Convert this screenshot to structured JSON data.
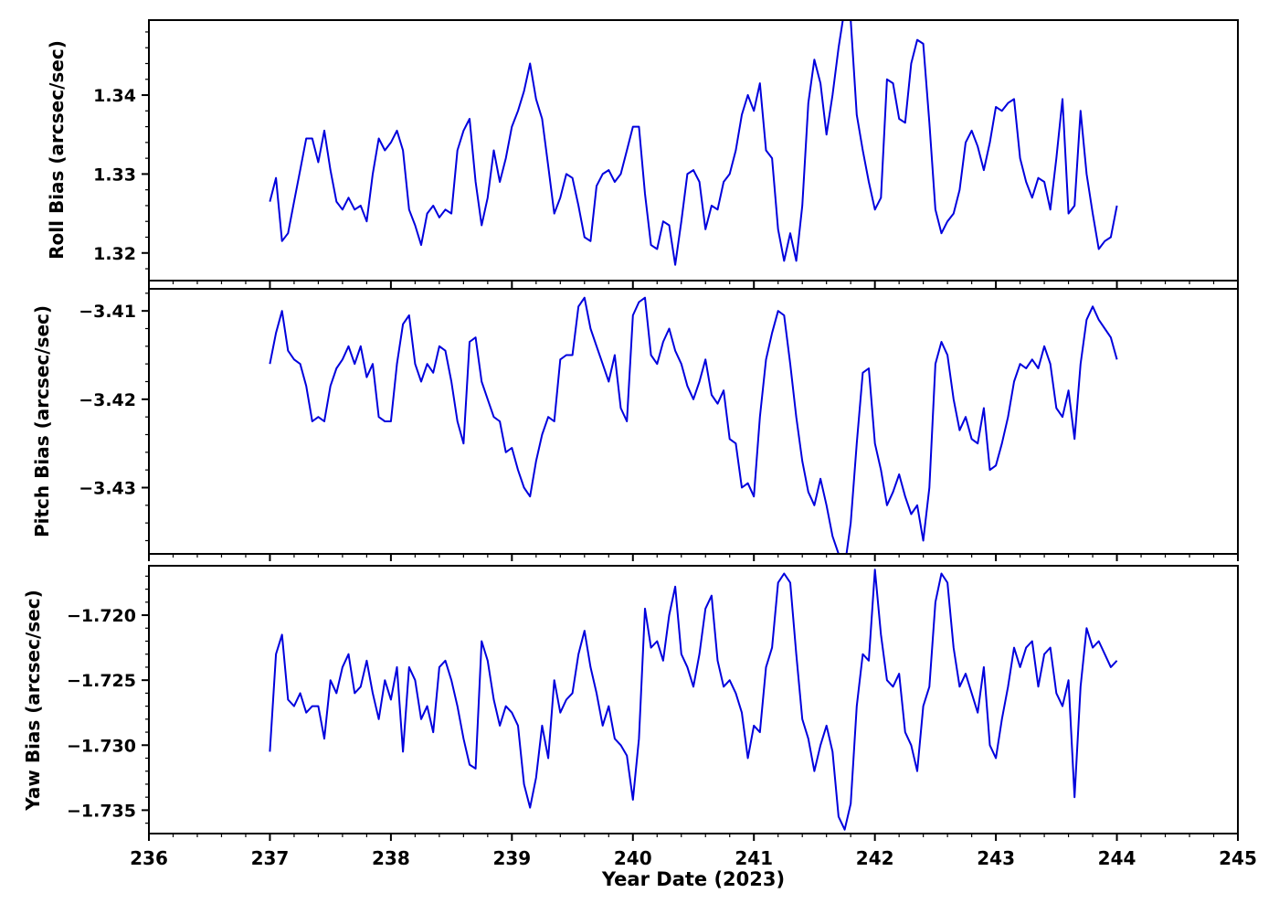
{
  "figure": {
    "background": "#ffffff",
    "line_color": "#0000dd",
    "axis_color": "#000000",
    "xlabel": "Year Date (2023)",
    "xlim": [
      236,
      245
    ],
    "x_ticks": [
      236,
      237,
      238,
      239,
      240,
      241,
      242,
      243,
      244,
      245
    ],
    "x_tick_labels": [
      "236",
      "237",
      "238",
      "239",
      "240",
      "241",
      "242",
      "243",
      "244",
      "245"
    ],
    "x_minor_step": 0.2
  },
  "chart_data": {
    "type": "line",
    "title": "",
    "xlabel": "Year Date (2023)",
    "x": [
      237,
      237.05,
      237.1,
      237.15,
      237.2,
      237.25,
      237.3,
      237.35,
      237.4,
      237.45,
      237.5,
      237.55,
      237.6,
      237.65,
      237.7,
      237.75,
      237.8,
      237.85,
      237.9,
      237.95,
      238,
      238.05,
      238.1,
      238.15,
      238.2,
      238.25,
      238.3,
      238.35,
      238.4,
      238.45,
      238.5,
      238.55,
      238.6,
      238.65,
      238.7,
      238.75,
      238.8,
      238.85,
      238.9,
      238.95,
      239,
      239.05,
      239.1,
      239.15,
      239.2,
      239.25,
      239.3,
      239.35,
      239.4,
      239.45,
      239.5,
      239.55,
      239.6,
      239.65,
      239.7,
      239.75,
      239.8,
      239.85,
      239.9,
      239.95,
      240,
      240.05,
      240.1,
      240.15,
      240.2,
      240.25,
      240.3,
      240.35,
      240.4,
      240.45,
      240.5,
      240.55,
      240.6,
      240.65,
      240.7,
      240.75,
      240.8,
      240.85,
      240.9,
      240.95,
      241,
      241.05,
      241.1,
      241.15,
      241.2,
      241.25,
      241.3,
      241.35,
      241.4,
      241.45,
      241.5,
      241.55,
      241.6,
      241.65,
      241.7,
      241.75,
      241.8,
      241.85,
      241.9,
      241.95,
      242,
      242.05,
      242.1,
      242.15,
      242.2,
      242.25,
      242.3,
      242.35,
      242.4,
      242.45,
      242.5,
      242.55,
      242.6,
      242.65,
      242.7,
      242.75,
      242.8,
      242.85,
      242.9,
      242.95,
      243,
      243.05,
      243.1,
      243.15,
      243.2,
      243.25,
      243.3,
      243.35,
      243.4,
      243.45,
      243.5,
      243.55,
      243.6,
      243.65,
      243.7,
      243.75,
      243.8,
      243.85,
      243.9,
      243.95,
      244
    ],
    "panels": [
      {
        "name": "roll-bias",
        "ylabel": "Roll Bias (arcsec/sec)",
        "ylim": [
          1.3165,
          1.3495
        ],
        "y_ticks": [
          1.32,
          1.33,
          1.34
        ],
        "y_tick_labels": [
          "1.32",
          "1.33",
          "1.34"
        ],
        "y_minor_step": 0.002,
        "y": [
          1.3265,
          1.3295,
          1.3215,
          1.3225,
          1.3265,
          1.3305,
          1.3345,
          1.3345,
          1.3315,
          1.3355,
          1.3305,
          1.3265,
          1.3255,
          1.327,
          1.3255,
          1.326,
          1.324,
          1.33,
          1.3345,
          1.333,
          1.334,
          1.3355,
          1.333,
          1.3255,
          1.3235,
          1.321,
          1.325,
          1.326,
          1.3245,
          1.3255,
          1.325,
          1.333,
          1.3355,
          1.337,
          1.329,
          1.3235,
          1.327,
          1.333,
          1.329,
          1.332,
          1.336,
          1.338,
          1.3405,
          1.344,
          1.3395,
          1.337,
          1.331,
          1.325,
          1.327,
          1.33,
          1.3295,
          1.326,
          1.322,
          1.3215,
          1.3285,
          1.33,
          1.3305,
          1.329,
          1.33,
          1.333,
          1.336,
          1.336,
          1.3275,
          1.321,
          1.3205,
          1.324,
          1.3235,
          1.3185,
          1.324,
          1.33,
          1.3305,
          1.329,
          1.323,
          1.326,
          1.3255,
          1.329,
          1.33,
          1.333,
          1.3375,
          1.34,
          1.338,
          1.3415,
          1.333,
          1.332,
          1.323,
          1.319,
          1.3225,
          1.319,
          1.326,
          1.339,
          1.3445,
          1.3415,
          1.335,
          1.34,
          1.346,
          1.351,
          1.3495,
          1.3375,
          1.333,
          1.329,
          1.3255,
          1.327,
          1.342,
          1.3415,
          1.337,
          1.3365,
          1.344,
          1.347,
          1.3465,
          1.3365,
          1.3255,
          1.3225,
          1.324,
          1.325,
          1.328,
          1.334,
          1.3355,
          1.3335,
          1.3305,
          1.334,
          1.3385,
          1.338,
          1.339,
          1.3395,
          1.332,
          1.329,
          1.327,
          1.3295,
          1.329,
          1.3255,
          1.332,
          1.3395,
          1.325,
          1.326,
          1.338,
          1.33,
          1.325,
          1.3205,
          1.3215,
          1.322,
          1.326
        ]
      },
      {
        "name": "pitch-bias",
        "ylabel": "Pitch Bias (arcsec/sec)",
        "ylim": [
          -3.4375,
          -3.4075
        ],
        "y_ticks": [
          -3.43,
          -3.42,
          -3.41
        ],
        "y_tick_labels": [
          "−3.43",
          "−3.42",
          "−3.41"
        ],
        "y_minor_step": 0.002,
        "y": [
          -3.416,
          -3.4125,
          -3.41,
          -3.4145,
          -3.4155,
          -3.416,
          -3.4185,
          -3.4225,
          -3.422,
          -3.4225,
          -3.4185,
          -3.4165,
          -3.4155,
          -3.414,
          -3.416,
          -3.414,
          -3.4175,
          -3.416,
          -3.422,
          -3.4225,
          -3.4225,
          -3.416,
          -3.4115,
          -3.4105,
          -3.416,
          -3.418,
          -3.416,
          -3.417,
          -3.414,
          -3.4145,
          -3.418,
          -3.4225,
          -3.425,
          -3.4135,
          -3.413,
          -3.418,
          -3.42,
          -3.422,
          -3.4225,
          -3.426,
          -3.4255,
          -3.428,
          -3.43,
          -3.431,
          -3.427,
          -3.424,
          -3.422,
          -3.4225,
          -3.4155,
          -3.415,
          -3.415,
          -3.4095,
          -3.4085,
          -3.412,
          -3.414,
          -3.416,
          -3.418,
          -3.415,
          -3.421,
          -3.4225,
          -3.4105,
          -3.409,
          -3.4085,
          -3.415,
          -3.416,
          -3.4135,
          -3.412,
          -3.4145,
          -3.416,
          -3.4185,
          -3.42,
          -3.418,
          -3.4155,
          -3.4195,
          -3.4205,
          -3.419,
          -3.4245,
          -3.425,
          -3.43,
          -3.4295,
          -3.431,
          -3.422,
          -3.4155,
          -3.4125,
          -3.41,
          -3.4105,
          -3.416,
          -3.422,
          -3.427,
          -3.4305,
          -3.432,
          -3.429,
          -3.432,
          -3.4355,
          -3.4375,
          -3.439,
          -3.434,
          -3.425,
          -3.417,
          -3.4165,
          -3.425,
          -3.428,
          -3.432,
          -3.4305,
          -3.4285,
          -3.431,
          -3.433,
          -3.432,
          -3.436,
          -3.43,
          -3.416,
          -3.4135,
          -3.415,
          -3.42,
          -3.4235,
          -3.422,
          -3.4245,
          -3.425,
          -3.421,
          -3.428,
          -3.4275,
          -3.425,
          -3.422,
          -3.418,
          -3.416,
          -3.4165,
          -3.4155,
          -3.4165,
          -3.414,
          -3.416,
          -3.421,
          -3.422,
          -3.419,
          -3.4245,
          -3.416,
          -3.411,
          -3.4095,
          -3.411,
          -3.412,
          -3.413,
          -3.4155
        ]
      },
      {
        "name": "yaw-bias",
        "ylabel": "Yaw Bias (arcsec/sec)",
        "ylim": [
          -1.7368,
          -1.7162
        ],
        "y_ticks": [
          -1.735,
          -1.73,
          -1.725,
          -1.72
        ],
        "y_tick_labels": [
          "−1.735",
          "−1.730",
          "−1.725",
          "−1.720"
        ],
        "y_minor_step": 0.001,
        "y": [
          -1.7305,
          -1.723,
          -1.7215,
          -1.7265,
          -1.727,
          -1.726,
          -1.7275,
          -1.727,
          -1.727,
          -1.7295,
          -1.725,
          -1.726,
          -1.724,
          -1.723,
          -1.726,
          -1.7255,
          -1.7235,
          -1.726,
          -1.728,
          -1.725,
          -1.7265,
          -1.724,
          -1.7305,
          -1.724,
          -1.725,
          -1.728,
          -1.727,
          -1.729,
          -1.724,
          -1.7235,
          -1.725,
          -1.727,
          -1.7295,
          -1.7315,
          -1.7318,
          -1.722,
          -1.7235,
          -1.7265,
          -1.7285,
          -1.727,
          -1.7275,
          -1.7285,
          -1.733,
          -1.7348,
          -1.7325,
          -1.7285,
          -1.731,
          -1.725,
          -1.7275,
          -1.7265,
          -1.726,
          -1.723,
          -1.7212,
          -1.724,
          -1.726,
          -1.7285,
          -1.727,
          -1.7295,
          -1.73,
          -1.7308,
          -1.7342,
          -1.7295,
          -1.7195,
          -1.7225,
          -1.722,
          -1.7235,
          -1.72,
          -1.7178,
          -1.723,
          -1.724,
          -1.7255,
          -1.723,
          -1.7195,
          -1.7185,
          -1.7235,
          -1.7255,
          -1.725,
          -1.726,
          -1.7275,
          -1.731,
          -1.7285,
          -1.729,
          -1.724,
          -1.7225,
          -1.7175,
          -1.7168,
          -1.7175,
          -1.723,
          -1.728,
          -1.7295,
          -1.732,
          -1.73,
          -1.7285,
          -1.7305,
          -1.7355,
          -1.7365,
          -1.7345,
          -1.727,
          -1.723,
          -1.7235,
          -1.7165,
          -1.7215,
          -1.725,
          -1.7255,
          -1.7245,
          -1.729,
          -1.73,
          -1.732,
          -1.727,
          -1.7255,
          -1.719,
          -1.7168,
          -1.7175,
          -1.7225,
          -1.7255,
          -1.7245,
          -1.726,
          -1.7275,
          -1.724,
          -1.73,
          -1.731,
          -1.728,
          -1.7255,
          -1.7225,
          -1.724,
          -1.7225,
          -1.722,
          -1.7255,
          -1.723,
          -1.7225,
          -1.726,
          -1.727,
          -1.725,
          -1.734,
          -1.7255,
          -1.721,
          -1.7225,
          -1.722,
          -1.723,
          -1.724,
          -1.7235
        ]
      }
    ]
  }
}
